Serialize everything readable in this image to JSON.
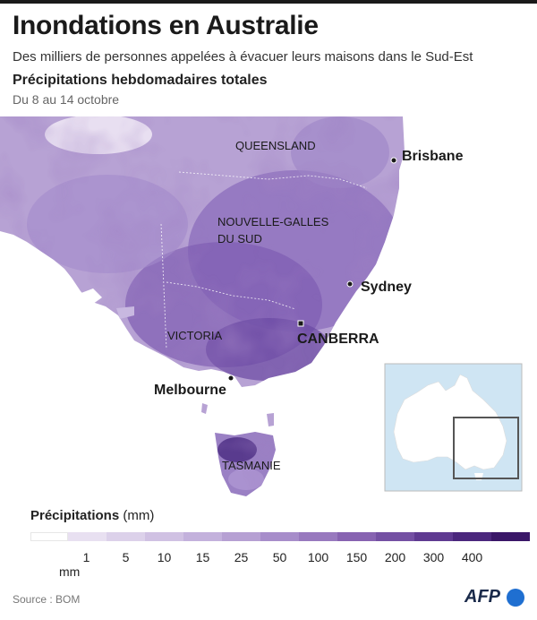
{
  "header": {
    "title": "Inondations en Australie",
    "subtitle": "Des milliers de personnes appelées à évacuer leurs maisons dans le Sud-Est",
    "section": "Précipitations hebdomadaires totales",
    "dates": "Du 8 au 14 octobre"
  },
  "map": {
    "regions": [
      "QUEENSLAND",
      "NOUVELLE-GALLES",
      "DU SUD",
      "VICTORIA",
      "TASMANIE"
    ],
    "cities": [
      "Brisbane",
      "Sydney",
      "CANBERRA",
      "Melbourne"
    ]
  },
  "legend": {
    "title": "Précipitations",
    "unit": "(mm)",
    "ticks": [
      "1",
      "5",
      "10",
      "15",
      "25",
      "50",
      "100",
      "150",
      "200",
      "300",
      "400"
    ],
    "tick_unit": "mm",
    "colors": [
      "#ffffff",
      "#e8e0f1",
      "#dcd1ea",
      "#d0c1e3",
      "#c3b1dc",
      "#b6a0d3",
      "#a78dca",
      "#9879be",
      "#8763b1",
      "#7450a3",
      "#5f3a91",
      "#4b277d",
      "#3a1768"
    ]
  },
  "footer": {
    "source": "Source : BOM",
    "logo": "AFP"
  }
}
